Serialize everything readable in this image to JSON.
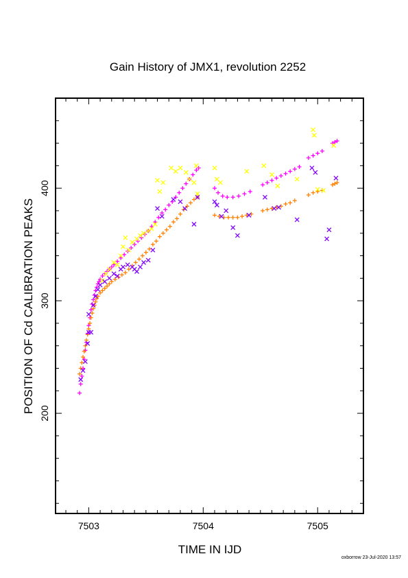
{
  "footer": "oxborrow 23-Jul-2020 13:57",
  "chart_data": {
    "type": "scatter",
    "title": "Gain History of JMX1, revolution 2252",
    "xlabel": "TIME IN IJD",
    "ylabel": "POSITION OF Cd CALIBRATION PEAKS",
    "xlim": [
      7502.71,
      7505.4
    ],
    "ylim": [
      111,
      480
    ],
    "xticks": [
      7503,
      7504,
      7505
    ],
    "xtick_labels": [
      "7503",
      "7504",
      "7505"
    ],
    "yticks": [
      200,
      300,
      400
    ],
    "ytick_labels": [
      "200",
      "300",
      "400"
    ],
    "grid": false,
    "legend": "none",
    "series": [
      {
        "color": "#ff00ff",
        "marker": "+",
        "points": [
          [
            7502.92,
            218
          ],
          [
            7502.93,
            226
          ],
          [
            7502.94,
            233
          ],
          [
            7502.95,
            240
          ],
          [
            7502.96,
            248
          ],
          [
            7502.97,
            256
          ],
          [
            7502.98,
            263
          ],
          [
            7502.99,
            271
          ],
          [
            7503.0,
            278
          ],
          [
            7503.01,
            285
          ],
          [
            7503.02,
            292
          ],
          [
            7503.03,
            297
          ],
          [
            7503.04,
            301
          ],
          [
            7503.05,
            305
          ],
          [
            7503.06,
            309
          ],
          [
            7503.07,
            312
          ],
          [
            7503.08,
            315
          ],
          [
            7503.09,
            317
          ],
          [
            7503.1,
            319
          ],
          [
            7503.12,
            322
          ],
          [
            7503.14,
            324
          ],
          [
            7503.16,
            326
          ],
          [
            7503.18,
            328
          ],
          [
            7503.2,
            330
          ],
          [
            7503.22,
            332
          ],
          [
            7503.25,
            335
          ],
          [
            7503.28,
            338
          ],
          [
            7503.31,
            341
          ],
          [
            7503.34,
            344
          ],
          [
            7503.37,
            347
          ],
          [
            7503.4,
            350
          ],
          [
            7503.43,
            353
          ],
          [
            7503.46,
            356
          ],
          [
            7503.49,
            359
          ],
          [
            7503.52,
            362
          ],
          [
            7503.55,
            366
          ],
          [
            7503.58,
            370
          ],
          [
            7503.61,
            374
          ],
          [
            7503.64,
            378
          ],
          [
            7503.67,
            381
          ],
          [
            7503.7,
            385
          ],
          [
            7503.73,
            388
          ],
          [
            7503.76,
            392
          ],
          [
            7503.79,
            396
          ],
          [
            7503.82,
            400
          ],
          [
            7503.85,
            404
          ],
          [
            7503.88,
            408
          ],
          [
            7503.91,
            412
          ],
          [
            7503.94,
            416
          ],
          [
            7503.96,
            418
          ],
          [
            7504.1,
            400
          ],
          [
            7504.13,
            396
          ],
          [
            7504.17,
            393
          ],
          [
            7504.21,
            392
          ],
          [
            7504.26,
            392
          ],
          [
            7504.31,
            393
          ],
          [
            7504.36,
            395
          ],
          [
            7504.41,
            397
          ],
          [
            7504.52,
            403
          ],
          [
            7504.56,
            405
          ],
          [
            7504.6,
            407
          ],
          [
            7504.64,
            409
          ],
          [
            7504.68,
            411
          ],
          [
            7504.72,
            413
          ],
          [
            7504.76,
            415
          ],
          [
            7504.8,
            417
          ],
          [
            7504.84,
            419
          ],
          [
            7504.92,
            427
          ],
          [
            7504.96,
            429
          ],
          [
            7505.0,
            431
          ],
          [
            7505.04,
            433
          ],
          [
            7505.13,
            440
          ],
          [
            7505.15,
            441
          ],
          [
            7505.17,
            442
          ]
        ]
      },
      {
        "color": "#ff8000",
        "marker": "+",
        "points": [
          [
            7502.92,
            235
          ],
          [
            7502.93,
            240
          ],
          [
            7502.94,
            245
          ],
          [
            7502.95,
            250
          ],
          [
            7502.96,
            255
          ],
          [
            7502.97,
            260
          ],
          [
            7502.98,
            265
          ],
          [
            7502.99,
            270
          ],
          [
            7503.0,
            275
          ],
          [
            7503.01,
            280
          ],
          [
            7503.02,
            285
          ],
          [
            7503.03,
            289
          ],
          [
            7503.04,
            293
          ],
          [
            7503.05,
            296
          ],
          [
            7503.06,
            299
          ],
          [
            7503.07,
            302
          ],
          [
            7503.08,
            304
          ],
          [
            7503.1,
            307
          ],
          [
            7503.12,
            309
          ],
          [
            7503.14,
            311
          ],
          [
            7503.16,
            313
          ],
          [
            7503.18,
            315
          ],
          [
            7503.2,
            317
          ],
          [
            7503.23,
            319
          ],
          [
            7503.26,
            321
          ],
          [
            7503.29,
            323
          ],
          [
            7503.32,
            325
          ],
          [
            7503.35,
            328
          ],
          [
            7503.38,
            331
          ],
          [
            7503.41,
            334
          ],
          [
            7503.44,
            337
          ],
          [
            7503.47,
            340
          ],
          [
            7503.5,
            343
          ],
          [
            7503.53,
            346
          ],
          [
            7503.56,
            350
          ],
          [
            7503.59,
            353
          ],
          [
            7503.62,
            357
          ],
          [
            7503.65,
            360
          ],
          [
            7503.68,
            363
          ],
          [
            7503.71,
            366
          ],
          [
            7503.74,
            370
          ],
          [
            7503.77,
            373
          ],
          [
            7503.8,
            377
          ],
          [
            7503.83,
            381
          ],
          [
            7503.86,
            384
          ],
          [
            7503.89,
            387
          ],
          [
            7503.92,
            390
          ],
          [
            7503.95,
            392
          ],
          [
            7504.1,
            376
          ],
          [
            7504.14,
            375
          ],
          [
            7504.18,
            374
          ],
          [
            7504.22,
            374
          ],
          [
            7504.26,
            374
          ],
          [
            7504.3,
            374
          ],
          [
            7504.34,
            375
          ],
          [
            7504.38,
            376
          ],
          [
            7504.42,
            377
          ],
          [
            7504.52,
            380
          ],
          [
            7504.56,
            381
          ],
          [
            7504.6,
            382
          ],
          [
            7504.64,
            383
          ],
          [
            7504.68,
            384
          ],
          [
            7504.72,
            386
          ],
          [
            7504.76,
            387
          ],
          [
            7504.8,
            389
          ],
          [
            7504.92,
            394
          ],
          [
            7504.96,
            396
          ],
          [
            7505.0,
            397
          ],
          [
            7505.04,
            398
          ],
          [
            7505.13,
            403
          ],
          [
            7505.15,
            404
          ],
          [
            7505.17,
            405
          ]
        ]
      },
      {
        "color": "#ffff00",
        "marker": "x",
        "points": [
          [
            7503.12,
            318
          ],
          [
            7503.15,
            324
          ],
          [
            7503.18,
            328
          ],
          [
            7503.22,
            334
          ],
          [
            7503.25,
            332
          ],
          [
            7503.28,
            340
          ],
          [
            7503.3,
            348
          ],
          [
            7503.32,
            356
          ],
          [
            7503.35,
            345
          ],
          [
            7503.38,
            352
          ],
          [
            7503.42,
            355
          ],
          [
            7503.45,
            358
          ],
          [
            7503.48,
            360
          ],
          [
            7503.52,
            362
          ],
          [
            7503.55,
            364
          ],
          [
            7503.58,
            368
          ],
          [
            7503.6,
            407
          ],
          [
            7503.62,
            397
          ],
          [
            7503.65,
            405
          ],
          [
            7503.72,
            418
          ],
          [
            7503.76,
            415
          ],
          [
            7503.8,
            418
          ],
          [
            7503.85,
            414
          ],
          [
            7503.88,
            408
          ],
          [
            7503.92,
            405
          ],
          [
            7503.94,
            420
          ],
          [
            7503.95,
            395
          ],
          [
            7504.1,
            418
          ],
          [
            7504.12,
            408
          ],
          [
            7504.15,
            405
          ],
          [
            7504.38,
            415
          ],
          [
            7504.53,
            420
          ],
          [
            7504.6,
            412
          ],
          [
            7504.65,
            402
          ],
          [
            7504.82,
            408
          ],
          [
            7504.96,
            452
          ],
          [
            7504.97,
            447
          ],
          [
            7505.0,
            399
          ],
          [
            7505.05,
            398
          ],
          [
            7505.14,
            438
          ]
        ]
      },
      {
        "color": "#8000ff",
        "marker": "x",
        "points": [
          [
            7502.93,
            230
          ],
          [
            7502.95,
            238
          ],
          [
            7502.97,
            246
          ],
          [
            7502.99,
            262
          ],
          [
            7503.0,
            272
          ],
          [
            7503.0,
            288
          ],
          [
            7503.02,
            272
          ],
          [
            7503.04,
            296
          ],
          [
            7503.06,
            304
          ],
          [
            7503.08,
            310
          ],
          [
            7503.1,
            314
          ],
          [
            7503.14,
            317
          ],
          [
            7503.18,
            320
          ],
          [
            7503.22,
            324
          ],
          [
            7503.25,
            322
          ],
          [
            7503.28,
            328
          ],
          [
            7503.3,
            330
          ],
          [
            7503.34,
            332
          ],
          [
            7503.38,
            330
          ],
          [
            7503.4,
            328
          ],
          [
            7503.42,
            326
          ],
          [
            7503.45,
            330
          ],
          [
            7503.48,
            334
          ],
          [
            7503.52,
            336
          ],
          [
            7503.56,
            345
          ],
          [
            7503.6,
            382
          ],
          [
            7503.64,
            375
          ],
          [
            7503.74,
            390
          ],
          [
            7503.8,
            388
          ],
          [
            7503.84,
            382
          ],
          [
            7503.92,
            368
          ],
          [
            7503.95,
            392
          ],
          [
            7504.1,
            388
          ],
          [
            7504.12,
            385
          ],
          [
            7504.16,
            375
          ],
          [
            7504.2,
            380
          ],
          [
            7504.26,
            365
          ],
          [
            7504.3,
            358
          ],
          [
            7504.4,
            376
          ],
          [
            7504.54,
            392
          ],
          [
            7504.62,
            382
          ],
          [
            7504.66,
            383
          ],
          [
            7504.82,
            372
          ],
          [
            7504.95,
            418
          ],
          [
            7504.98,
            414
          ],
          [
            7505.08,
            355
          ],
          [
            7505.1,
            363
          ],
          [
            7505.16,
            409
          ]
        ]
      }
    ]
  }
}
